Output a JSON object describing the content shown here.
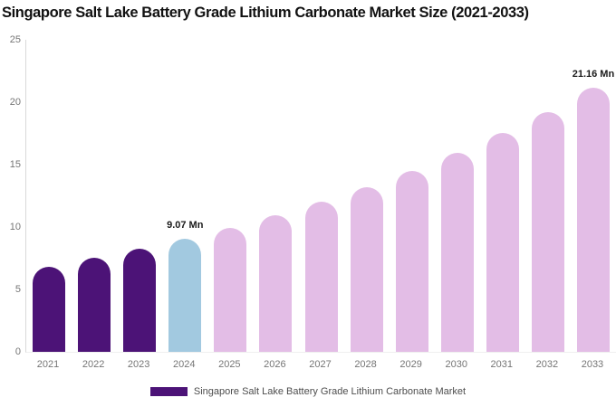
{
  "title": "Singapore Salt Lake Battery Grade Lithium Carbonate Market Size (2021-2033)",
  "legend": {
    "label": "Singapore Salt Lake Battery Grade Lithium Carbonate Market",
    "swatch_color": "#4C1377"
  },
  "colors": {
    "historical_bar": "#4C1377",
    "current_year_bar": "#A2C9E0",
    "forecast_bar": "#E3BDE6",
    "axis_line": "#D9D9D9",
    "tick_label": "#757575",
    "annotation_text": "#1A1A1A",
    "legend_text": "#4D4D4D",
    "background": "#FFFFFF"
  },
  "chart_data": {
    "type": "bar",
    "title": "Singapore Salt Lake Battery Grade Lithium Carbonate Market Size (2021-2033)",
    "categories": [
      "2021",
      "2022",
      "2023",
      "2024",
      "2025",
      "2026",
      "2027",
      "2028",
      "2029",
      "2030",
      "2031",
      "2032",
      "2033"
    ],
    "values": [
      6.84,
      7.51,
      8.25,
      9.07,
      9.96,
      10.94,
      12.02,
      13.21,
      14.51,
      15.94,
      17.51,
      19.24,
      21.16
    ],
    "unit": "Mn",
    "xlabel": "",
    "ylabel": "",
    "ylim": [
      0,
      25
    ],
    "y_ticks": [
      0,
      5,
      10,
      15,
      20,
      25
    ],
    "grid": false,
    "legend_position": "bottom",
    "bar_colors": [
      "#4C1377",
      "#4C1377",
      "#4C1377",
      "#A2C9E0",
      "#E3BDE6",
      "#E3BDE6",
      "#E3BDE6",
      "#E3BDE6",
      "#E3BDE6",
      "#E3BDE6",
      "#E3BDE6",
      "#E3BDE6",
      "#E3BDE6"
    ],
    "annotations": [
      {
        "category": "2024",
        "text": "9.07 Mn"
      },
      {
        "category": "2033",
        "text": "21.16 Mn"
      }
    ]
  }
}
